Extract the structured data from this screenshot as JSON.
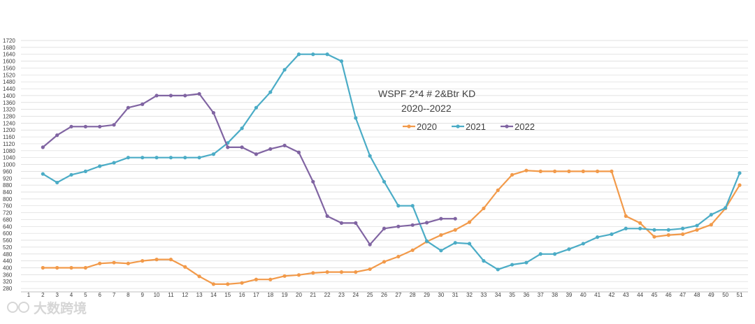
{
  "chart_data": {
    "type": "line",
    "title": "WSPF 2*4 # 2&Btr KD",
    "subtitle": "2020--2022",
    "xlabel": "",
    "ylabel": "",
    "x": [
      1,
      2,
      3,
      4,
      5,
      6,
      7,
      8,
      9,
      10,
      11,
      12,
      13,
      14,
      15,
      16,
      17,
      18,
      19,
      20,
      21,
      22,
      23,
      24,
      25,
      26,
      27,
      28,
      29,
      30,
      31,
      32,
      33,
      34,
      35,
      36,
      37,
      38,
      39,
      40,
      41,
      42,
      43,
      44,
      45,
      46,
      47,
      48,
      49,
      50,
      51
    ],
    "ylim": [
      260,
      1720
    ],
    "y_ticks": [
      280,
      320,
      360,
      400,
      440,
      480,
      520,
      560,
      600,
      640,
      680,
      720,
      760,
      800,
      840,
      880,
      920,
      960,
      1000,
      1040,
      1080,
      1120,
      1160,
      1200,
      1240,
      1280,
      1320,
      1360,
      1400,
      1440,
      1480,
      1520,
      1560,
      1600,
      1640,
      1680,
      1720
    ],
    "grid": true,
    "legend_position": "top-center",
    "series": [
      {
        "name": "2020",
        "color": "#F29A4A",
        "points": [
          [
            2,
            400
          ],
          [
            3,
            400
          ],
          [
            4,
            400
          ],
          [
            5,
            400
          ],
          [
            6,
            425
          ],
          [
            7,
            430
          ],
          [
            8,
            425
          ],
          [
            9,
            440
          ],
          [
            10,
            448
          ],
          [
            11,
            448
          ],
          [
            12,
            405
          ],
          [
            13,
            350
          ],
          [
            14,
            305
          ],
          [
            15,
            305
          ],
          [
            16,
            312
          ],
          [
            17,
            332
          ],
          [
            18,
            332
          ],
          [
            19,
            352
          ],
          [
            20,
            358
          ],
          [
            21,
            370
          ],
          [
            22,
            375
          ],
          [
            23,
            375
          ],
          [
            24,
            375
          ],
          [
            25,
            392
          ],
          [
            26,
            435
          ],
          [
            27,
            465
          ],
          [
            28,
            502
          ],
          [
            29,
            552
          ],
          [
            30,
            590
          ],
          [
            31,
            620
          ],
          [
            32,
            665
          ],
          [
            33,
            745
          ],
          [
            34,
            850
          ],
          [
            35,
            940
          ],
          [
            36,
            965
          ],
          [
            37,
            960
          ],
          [
            38,
            960
          ],
          [
            39,
            960
          ],
          [
            40,
            960
          ],
          [
            41,
            960
          ],
          [
            42,
            960
          ],
          [
            43,
            700
          ],
          [
            44,
            660
          ],
          [
            45,
            580
          ],
          [
            46,
            590
          ],
          [
            47,
            595
          ],
          [
            48,
            620
          ],
          [
            49,
            650
          ],
          [
            50,
            745
          ],
          [
            51,
            880
          ]
        ]
      },
      {
        "name": "2021",
        "color": "#4BACC6",
        "points": [
          [
            2,
            945
          ],
          [
            3,
            895
          ],
          [
            4,
            940
          ],
          [
            5,
            960
          ],
          [
            6,
            990
          ],
          [
            7,
            1010
          ],
          [
            8,
            1040
          ],
          [
            9,
            1040
          ],
          [
            10,
            1040
          ],
          [
            11,
            1040
          ],
          [
            12,
            1040
          ],
          [
            13,
            1040
          ],
          [
            14,
            1060
          ],
          [
            15,
            1125
          ],
          [
            16,
            1210
          ],
          [
            17,
            1330
          ],
          [
            18,
            1420
          ],
          [
            19,
            1550
          ],
          [
            20,
            1640
          ],
          [
            21,
            1640
          ],
          [
            22,
            1640
          ],
          [
            23,
            1600
          ],
          [
            24,
            1270
          ],
          [
            25,
            1050
          ],
          [
            26,
            900
          ],
          [
            27,
            760
          ],
          [
            28,
            760
          ],
          [
            29,
            555
          ],
          [
            30,
            500
          ],
          [
            31,
            545
          ],
          [
            32,
            540
          ],
          [
            33,
            440
          ],
          [
            34,
            390
          ],
          [
            35,
            418
          ],
          [
            36,
            430
          ],
          [
            37,
            480
          ],
          [
            38,
            480
          ],
          [
            39,
            508
          ],
          [
            40,
            540
          ],
          [
            41,
            578
          ],
          [
            42,
            595
          ],
          [
            43,
            628
          ],
          [
            44,
            628
          ],
          [
            45,
            620
          ],
          [
            46,
            620
          ],
          [
            47,
            628
          ],
          [
            48,
            645
          ],
          [
            49,
            708
          ],
          [
            50,
            748
          ],
          [
            51,
            950
          ]
        ]
      },
      {
        "name": "2022",
        "color": "#8064A2",
        "points": [
          [
            2,
            1100
          ],
          [
            3,
            1170
          ],
          [
            4,
            1220
          ],
          [
            5,
            1220
          ],
          [
            6,
            1220
          ],
          [
            7,
            1230
          ],
          [
            8,
            1330
          ],
          [
            9,
            1350
          ],
          [
            10,
            1400
          ],
          [
            11,
            1400
          ],
          [
            12,
            1400
          ],
          [
            13,
            1410
          ],
          [
            14,
            1300
          ],
          [
            15,
            1100
          ],
          [
            16,
            1100
          ],
          [
            17,
            1060
          ],
          [
            18,
            1090
          ],
          [
            19,
            1110
          ],
          [
            20,
            1070
          ],
          [
            21,
            900
          ],
          [
            22,
            700
          ],
          [
            23,
            660
          ],
          [
            24,
            660
          ],
          [
            25,
            535
          ],
          [
            26,
            628
          ],
          [
            27,
            640
          ],
          [
            28,
            648
          ],
          [
            29,
            662
          ],
          [
            30,
            685
          ],
          [
            31,
            685
          ]
        ]
      }
    ]
  },
  "watermark": {
    "text": "大数跨境"
  }
}
